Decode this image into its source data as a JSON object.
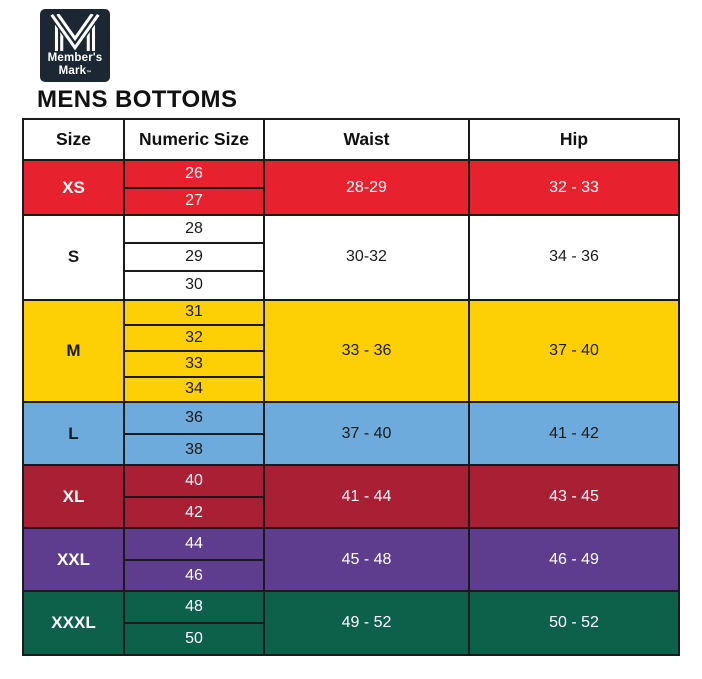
{
  "logo": {
    "line1": "Member's",
    "line2": "Mark",
    "tm": "™",
    "bg_color": "#1c2733",
    "monogram": "members-mark-m-stripes"
  },
  "header": {
    "title": "MENS BOTTOMS"
  },
  "chart_data": {
    "type": "table",
    "title": "MENS BOTTOMS",
    "headers": [
      "Size",
      "Numeric Size",
      "Waist",
      "Hip"
    ],
    "groups": [
      {
        "size": "XS",
        "numeric_sizes": [
          "26",
          "27"
        ],
        "waist": "28-29",
        "hip": "32 - 33",
        "bg": "#e8212f",
        "fg": "#ffffff"
      },
      {
        "size": "S",
        "numeric_sizes": [
          "28",
          "29",
          "30"
        ],
        "waist": "30-32",
        "hip": "34 - 36",
        "bg": "#ffffff",
        "fg": "#1a1a1a"
      },
      {
        "size": "M",
        "numeric_sizes": [
          "31",
          "32",
          "33",
          "34"
        ],
        "waist": "33 - 36",
        "hip": "37 - 40",
        "bg": "#fdd006",
        "fg": "#1a1a1a"
      },
      {
        "size": "L",
        "numeric_sizes": [
          "36",
          "38"
        ],
        "waist": "37 - 40",
        "hip": "41 - 42",
        "bg": "#6dabdc",
        "fg": "#1a1a1a"
      },
      {
        "size": "XL",
        "numeric_sizes": [
          "40",
          "42"
        ],
        "waist": "41 - 44",
        "hip": "43 - 45",
        "bg": "#a91f33",
        "fg": "#ffffff"
      },
      {
        "size": "XXL",
        "numeric_sizes": [
          "44",
          "46"
        ],
        "waist": "45 - 48",
        "hip": "46 - 49",
        "bg": "#5e3d8f",
        "fg": "#ffffff"
      },
      {
        "size": "XXXL",
        "numeric_sizes": [
          "48",
          "50"
        ],
        "waist": "49 - 52",
        "hip": "50 - 52",
        "bg": "#0d604a",
        "fg": "#ffffff"
      }
    ]
  }
}
